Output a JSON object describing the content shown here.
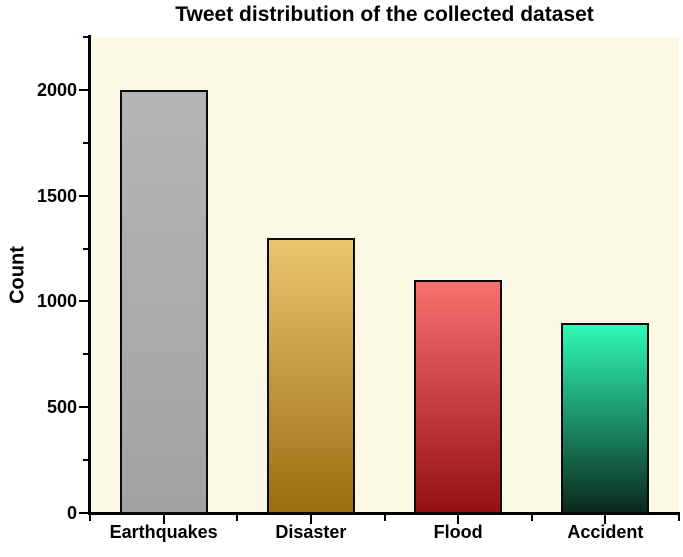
{
  "chart_data": {
    "type": "bar",
    "title": "Tweet distribution of the collected dataset",
    "ylabel": "Count",
    "xlabel": "",
    "categories": [
      "Earthquakes",
      "Disaster",
      "Flood",
      "Accident"
    ],
    "values": [
      2000,
      1300,
      1100,
      900
    ],
    "ylim": [
      0,
      2250
    ],
    "ytick_major": [
      0,
      500,
      1000,
      1500,
      2000
    ],
    "ytick_minor": [
      250,
      750,
      1250,
      1750,
      2250
    ],
    "grid": false,
    "legend": false,
    "colors": {
      "plot_background": "#FBF9E6",
      "axis": "#000000",
      "text": "#000000",
      "bar_gradients": [
        {
          "top": "#B5B5B5",
          "bottom": "#A2A2A2"
        },
        {
          "top": "#EAC56D",
          "bottom": "#9C6D10"
        },
        {
          "top": "#F8716F",
          "bottom": "#951111"
        },
        {
          "top": "#2FF9B6",
          "bottom": "#0A291C"
        }
      ]
    }
  }
}
